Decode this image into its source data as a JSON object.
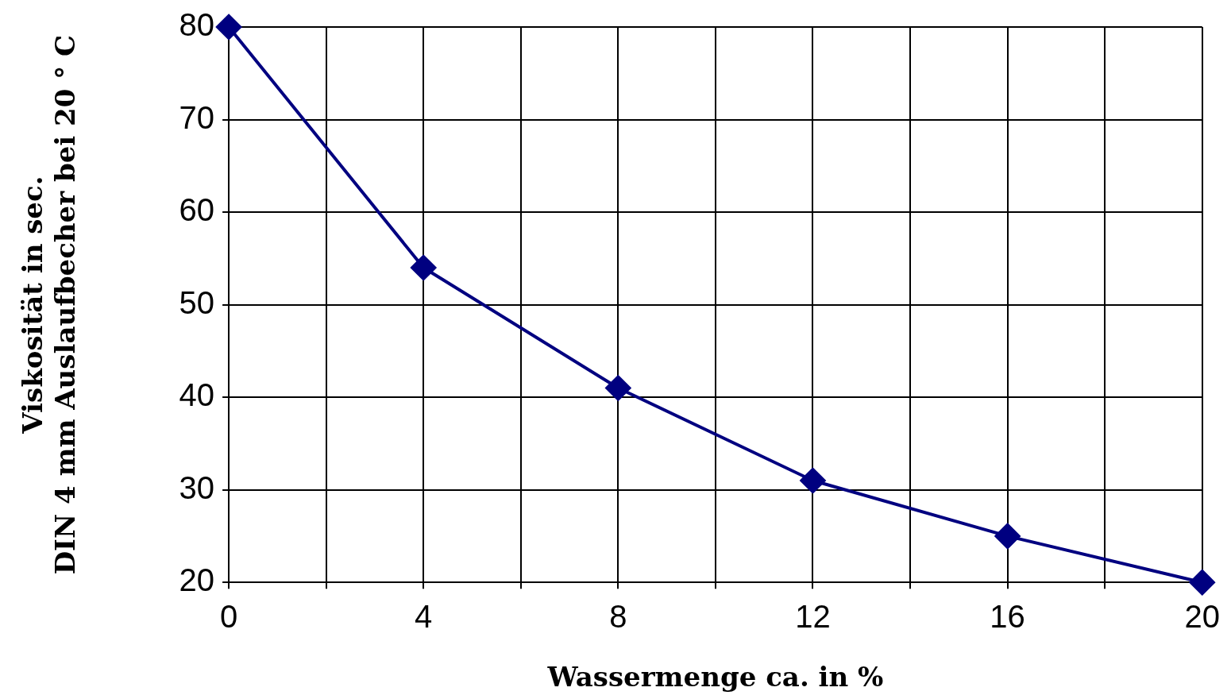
{
  "chart_data": {
    "type": "line",
    "xlabel": "Wassermenge ca. in %",
    "ylabel": "Viskosität in sec.\nDIN 4 mm Auslaufbecher bei 20 ° C",
    "x": [
      0,
      4,
      8,
      12,
      16,
      20
    ],
    "values": [
      80,
      54,
      41,
      31,
      25,
      20
    ],
    "color": "#000080",
    "marker": "diamond",
    "xlim": [
      0,
      20
    ],
    "xticks": [
      0,
      {
        "value": 2,
        "label": null
      },
      4,
      {
        "value": 6,
        "label": null
      },
      8,
      {
        "value": 10,
        "label": null
      },
      12,
      {
        "value": 14,
        "label": null
      },
      16,
      {
        "value": 18,
        "label": null
      },
      20
    ],
    "ylim": [
      20,
      80
    ],
    "yticks": [
      20,
      30,
      40,
      50,
      60,
      70,
      80
    ],
    "grid": true
  }
}
